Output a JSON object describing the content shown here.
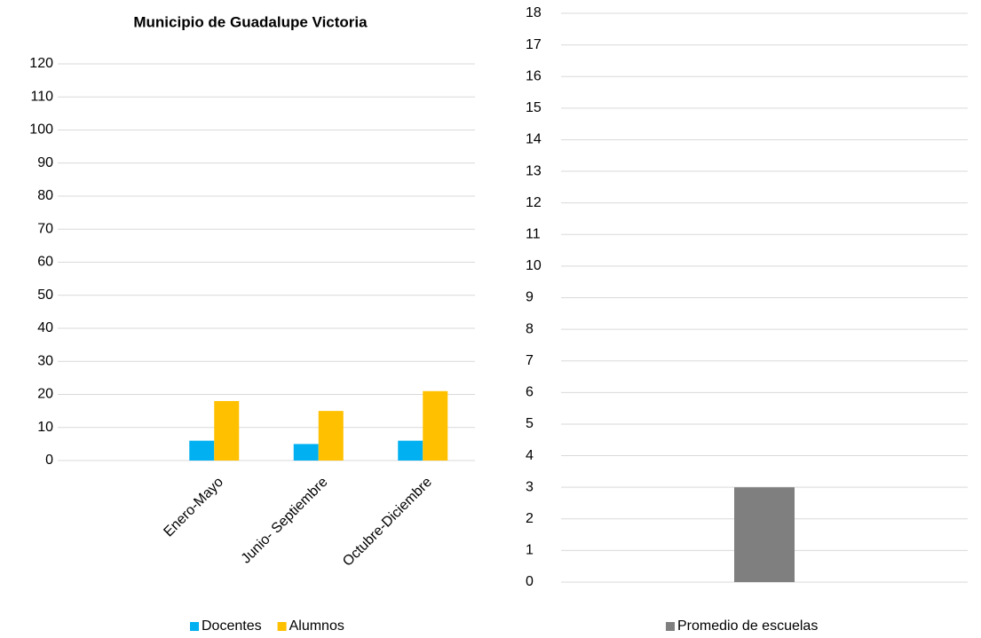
{
  "chart_data": [
    {
      "type": "bar",
      "title": "Municipio de Guadalupe Victoria",
      "categories": [
        null,
        "Enero-Mayo",
        "Junio- Septiembre",
        "Octubre-Diciembre"
      ],
      "series": [
        {
          "name": "Docentes",
          "color": "#00b0f0",
          "values": [
            null,
            6,
            5,
            6
          ]
        },
        {
          "name": "Alumnos",
          "color": "#ffc000",
          "values": [
            null,
            18,
            15,
            21
          ]
        }
      ],
      "ylim": [
        0,
        120
      ],
      "yticks": [
        0,
        10,
        20,
        30,
        40,
        50,
        60,
        70,
        80,
        90,
        100,
        110,
        120
      ],
      "grid": true,
      "legend": "bottom"
    },
    {
      "type": "bar",
      "categories": [
        null
      ],
      "series": [
        {
          "name": "Promedio de escuelas",
          "color": "#7f7f7f",
          "values": [
            3
          ]
        }
      ],
      "ylim": [
        0,
        18
      ],
      "yticks": [
        0,
        1,
        2,
        3,
        4,
        5,
        6,
        7,
        8,
        9,
        10,
        11,
        12,
        13,
        14,
        15,
        16,
        17,
        18
      ],
      "grid": true,
      "legend": "bottom"
    }
  ]
}
